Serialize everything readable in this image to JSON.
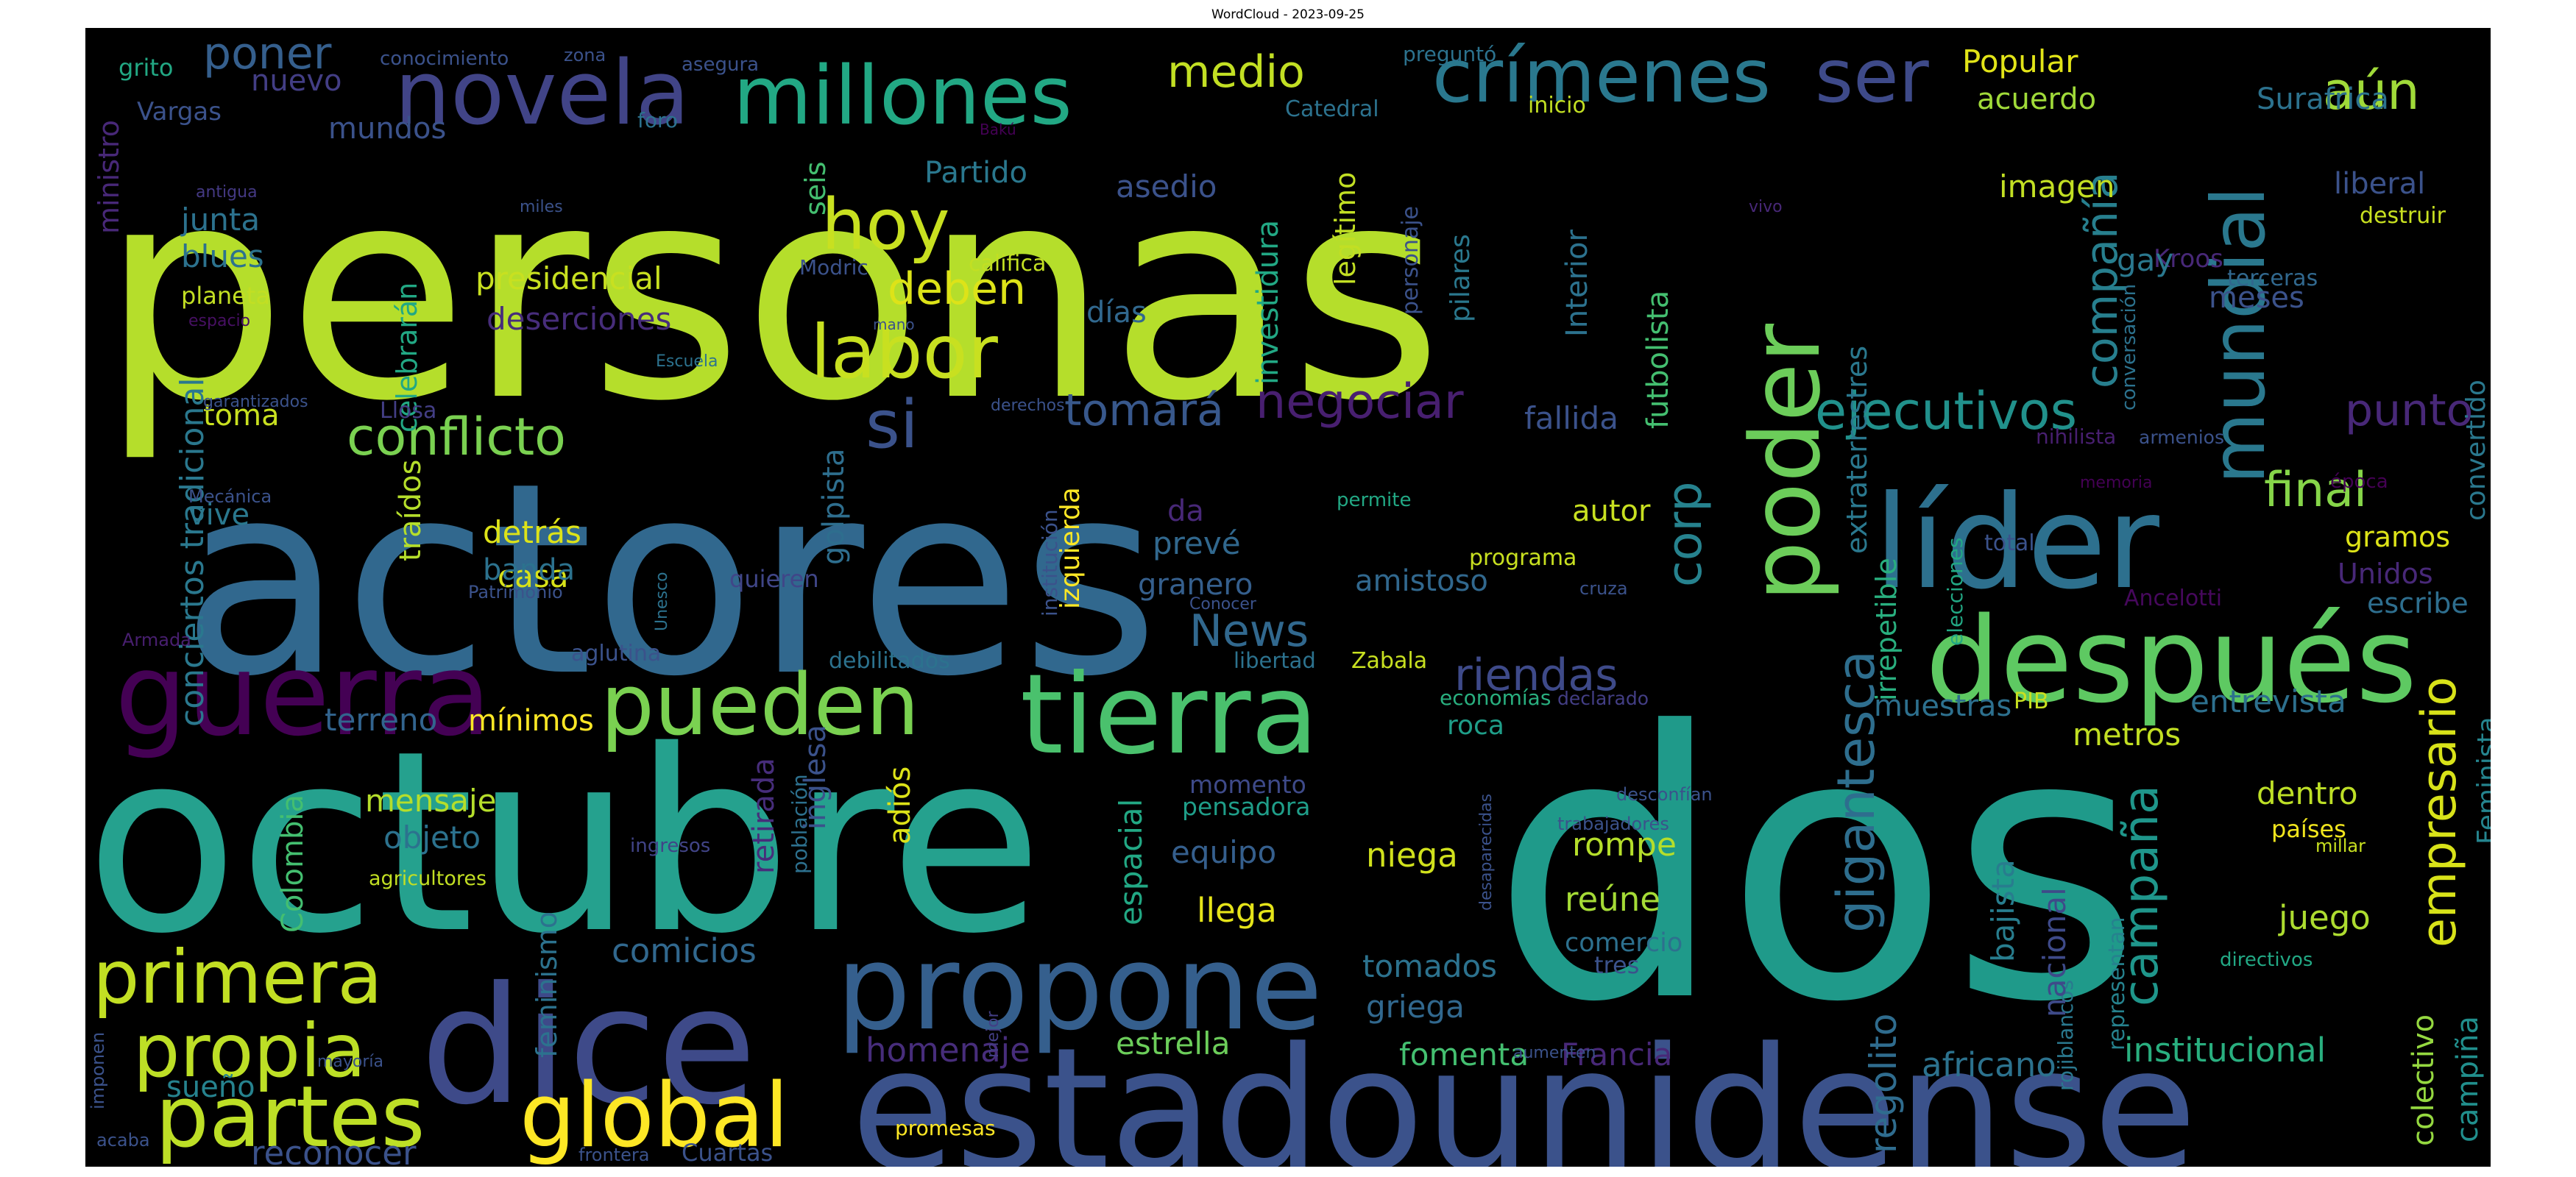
{
  "chart_data": {
    "type": "wordcloud",
    "title": "WordCloud - 2023-09-25",
    "colormap": "viridis",
    "background": "#000000",
    "words": [
      {
        "text": "personas",
        "color": "#b5de2b",
        "weight": 100
      },
      {
        "text": "dos",
        "color": "#1f9a8a",
        "weight": 95
      },
      {
        "text": "actores",
        "color": "#31688e",
        "weight": 92
      },
      {
        "text": "octubre",
        "color": "#25a18e",
        "weight": 90
      },
      {
        "text": "estadounidense",
        "color": "#3b528b",
        "weight": 70
      },
      {
        "text": "dice",
        "color": "#3e4a89",
        "weight": 66
      },
      {
        "text": "líder",
        "color": "#2d708e",
        "weight": 58
      },
      {
        "text": "propone",
        "color": "#355f8d",
        "weight": 52
      },
      {
        "text": "después",
        "color": "#5ec962",
        "weight": 50
      },
      {
        "text": "guerra",
        "color": "#440154",
        "weight": 48
      },
      {
        "text": "tierra",
        "color": "#4ac16d",
        "weight": 46
      },
      {
        "text": "poder",
        "color": "#6ccd5a",
        "weight": 46
      },
      {
        "text": "novela",
        "color": "#414487",
        "weight": 40
      },
      {
        "text": "millones",
        "color": "#22a884",
        "weight": 40
      },
      {
        "text": "pueden",
        "color": "#7ad151",
        "weight": 40
      },
      {
        "text": "crímenes",
        "color": "#2a788e",
        "weight": 38
      },
      {
        "text": "mundial",
        "color": "#2a788e",
        "weight": 38
      },
      {
        "text": "ser",
        "color": "#3e4a89",
        "weight": 38
      },
      {
        "text": "partes",
        "color": "#bddf26",
        "weight": 37
      },
      {
        "text": "global",
        "color": "#fde725",
        "weight": 37
      },
      {
        "text": "primera",
        "color": "#c2df23",
        "weight": 35
      },
      {
        "text": "propia",
        "color": "#bddf26",
        "weight": 35
      },
      {
        "text": "labor",
        "color": "#c8e020",
        "weight": 34
      },
      {
        "text": "hoy",
        "color": "#c8e020",
        "weight": 34
      },
      {
        "text": "si",
        "color": "#3b528b",
        "weight": 32
      },
      {
        "text": "gigantesca",
        "color": "#2e6e8e",
        "weight": 32
      },
      {
        "text": "campaña",
        "color": "#1f968b",
        "weight": 31
      },
      {
        "text": "empresario",
        "color": "#d8e219",
        "weight": 31
      },
      {
        "text": "compañía",
        "color": "#277f8e",
        "weight": 30
      },
      {
        "text": "conflicto",
        "color": "#7ad151",
        "weight": 30
      },
      {
        "text": "corp",
        "color": "#26828e",
        "weight": 30
      },
      {
        "text": "ejecutivos",
        "color": "#21918c",
        "weight": 29
      },
      {
        "text": "aún",
        "color": "#a0da39",
        "weight": 28
      },
      {
        "text": "final",
        "color": "#86d549",
        "weight": 28
      },
      {
        "text": "riendas",
        "color": "#3e4a89",
        "weight": 28
      },
      {
        "text": "poner",
        "color": "#355f8d",
        "weight": 27
      },
      {
        "text": "negociar",
        "color": "#481f70",
        "weight": 27
      },
      {
        "text": "medio",
        "color": "#c2df23",
        "weight": 27
      },
      {
        "text": "tomará",
        "color": "#38588c",
        "weight": 27
      },
      {
        "text": "deben",
        "color": "#dde318",
        "weight": 27
      },
      {
        "text": "punto",
        "color": "#482878",
        "weight": 27
      },
      {
        "text": "News",
        "color": "#31688e",
        "weight": 27
      },
      {
        "text": "regolito",
        "color": "#2f6c8e",
        "weight": 25
      },
      {
        "text": "institucional",
        "color": "#29af7f",
        "weight": 25
      },
      {
        "text": "africano",
        "color": "#2c728e",
        "weight": 25
      },
      {
        "text": "homenaje",
        "color": "#472d7b",
        "weight": 23
      },
      {
        "text": "comicios",
        "color": "#31688e",
        "weight": 23
      },
      {
        "text": "reconocer",
        "color": "#3b528b",
        "weight": 23
      },
      {
        "text": "sueño",
        "color": "#26828e",
        "weight": 22
      },
      {
        "text": "llega",
        "color": "#e5e419",
        "weight": 22
      },
      {
        "text": "estrella",
        "color": "#6ccd5a",
        "weight": 22
      },
      {
        "text": "fomenta",
        "color": "#44bf70",
        "weight": 22
      },
      {
        "text": "Francia",
        "color": "#482878",
        "weight": 22
      },
      {
        "text": "griega",
        "color": "#31688e",
        "weight": 22
      },
      {
        "text": "tomados",
        "color": "#2c728e",
        "weight": 22
      },
      {
        "text": "juego",
        "color": "#addc30",
        "weight": 22
      },
      {
        "text": "colectivo",
        "color": "#95d840",
        "weight": 22
      },
      {
        "text": "campiña",
        "color": "#218f8d",
        "weight": 22
      },
      {
        "text": "rojiblancos",
        "color": "#2a788e",
        "weight": 15
      },
      {
        "text": "nacional",
        "color": "#3e4a89",
        "weight": 22
      },
      {
        "text": "bajista",
        "color": "#287d8e",
        "weight": 22
      },
      {
        "text": "representan",
        "color": "#26828e",
        "weight": 15
      },
      {
        "text": "directivos",
        "color": "#22a884",
        "weight": 14
      },
      {
        "text": "comercio",
        "color": "#2d708e",
        "weight": 15
      },
      {
        "text": "tres",
        "color": "#3b528b",
        "weight": 16
      },
      {
        "text": "reúne",
        "color": "#a5db36",
        "weight": 22
      },
      {
        "text": "rompe",
        "color": "#b5de2b",
        "weight": 21
      },
      {
        "text": "niega",
        "color": "#d0e11c",
        "weight": 21
      },
      {
        "text": "equipo",
        "color": "#355f8d",
        "weight": 21
      },
      {
        "text": "pensadora",
        "color": "#1f9e89",
        "weight": 17
      },
      {
        "text": "momento",
        "color": "#3e4a89",
        "weight": 17
      },
      {
        "text": "población",
        "color": "#2d708e",
        "weight": 15
      },
      {
        "text": "ingresos",
        "color": "#414487",
        "weight": 13
      },
      {
        "text": "agricultores",
        "color": "#c2df23",
        "weight": 14
      },
      {
        "text": "mensaje",
        "color": "#b5de2b",
        "weight": 22
      },
      {
        "text": "objeto",
        "color": "#2c728e",
        "weight": 22
      },
      {
        "text": "Colombia",
        "color": "#44bf70",
        "weight": 21
      },
      {
        "text": "feminismo",
        "color": "#2c728e",
        "weight": 19
      },
      {
        "text": "retirada",
        "color": "#472d7b",
        "weight": 20
      },
      {
        "text": "inglesa",
        "color": "#3b528b",
        "weight": 22
      },
      {
        "text": "adiós",
        "color": "#dde318",
        "weight": 20
      },
      {
        "text": "espacial",
        "color": "#22a884",
        "weight": 22
      },
      {
        "text": "terreno",
        "color": "#32648e",
        "weight": 21
      },
      {
        "text": "mínimos",
        "color": "#fde725",
        "weight": 21
      },
      {
        "text": "conciertos tradicional",
        "color": "#2a788e",
        "weight": 22
      },
      {
        "text": "traídos",
        "color": "#b5de2b",
        "weight": 21
      },
      {
        "text": "casa",
        "color": "#d8e219",
        "weight": 21
      },
      {
        "text": "detrás",
        "color": "#dde318",
        "weight": 21
      },
      {
        "text": "banda",
        "color": "#2c728e",
        "weight": 21
      },
      {
        "text": "toma",
        "color": "#c8e020",
        "weight": 19
      },
      {
        "text": "vive",
        "color": "#2a788e",
        "weight": 19
      },
      {
        "text": "golpista",
        "color": "#2e6e8e",
        "weight": 20
      },
      {
        "text": "izquierda",
        "color": "#fde725",
        "weight": 18
      },
      {
        "text": "institución",
        "color": "#3b528b",
        "weight": 15
      },
      {
        "text": "aglutina",
        "color": "#3b528b",
        "weight": 16
      },
      {
        "text": "debilitados",
        "color": "#2c728e",
        "weight": 16
      },
      {
        "text": "quieren",
        "color": "#404688",
        "weight": 17
      },
      {
        "text": "prevé",
        "color": "#31688e",
        "weight": 21
      },
      {
        "text": "granero",
        "color": "#355f8d",
        "weight": 20
      },
      {
        "text": "amistoso",
        "color": "#31688e",
        "weight": 21
      },
      {
        "text": "autor",
        "color": "#c8e020",
        "weight": 21
      },
      {
        "text": "programa",
        "color": "#c8e020",
        "weight": 16
      },
      {
        "text": "da",
        "color": "#482878",
        "weight": 21
      },
      {
        "text": "libertad",
        "color": "#2c728e",
        "weight": 16
      },
      {
        "text": "Zabala",
        "color": "#c8e020",
        "weight": 16
      },
      {
        "text": "economías",
        "color": "#29af7f",
        "weight": 15
      },
      {
        "text": "roca",
        "color": "#1f9e89",
        "weight": 19
      },
      {
        "text": "declarado",
        "color": "#433e85",
        "weight": 14
      },
      {
        "text": "muestras",
        "color": "#2d708e",
        "weight": 21
      },
      {
        "text": "PIB",
        "color": "#c8e020",
        "weight": 17
      },
      {
        "text": "metros",
        "color": "#c2df23",
        "weight": 21
      },
      {
        "text": "entrevista",
        "color": "#2d708e",
        "weight": 21
      },
      {
        "text": "dentro",
        "color": "#bddf26",
        "weight": 21
      },
      {
        "text": "países",
        "color": "#f1e51d",
        "weight": 16
      },
      {
        "text": "millar",
        "color": "#c8e020",
        "weight": 13
      },
      {
        "text": "Feminista",
        "color": "#25848e",
        "weight": 18
      },
      {
        "text": "irrepetible",
        "color": "#29af7f",
        "weight": 20
      },
      {
        "text": "extraterrestres",
        "color": "#2a788e",
        "weight": 20
      },
      {
        "text": "elecciones",
        "color": "#22a884",
        "weight": 15
      },
      {
        "text": "total",
        "color": "#3b528b",
        "weight": 16
      },
      {
        "text": "memoria",
        "color": "#440154",
        "weight": 12
      },
      {
        "text": "nihilista",
        "color": "#481f70",
        "weight": 15
      },
      {
        "text": "armenios",
        "color": "#3b528b",
        "weight": 13
      },
      {
        "text": "época",
        "color": "#440154",
        "weight": 14
      },
      {
        "text": "gramos",
        "color": "#dde318",
        "weight": 19
      },
      {
        "text": "Unidos",
        "color": "#482878",
        "weight": 19
      },
      {
        "text": "escribe",
        "color": "#2e6e8e",
        "weight": 19
      },
      {
        "text": "Ancelotti",
        "color": "#46085c",
        "weight": 16
      },
      {
        "text": "convertido",
        "color": "#2a788e",
        "weight": 18
      },
      {
        "text": "liberal",
        "color": "#3b528b",
        "weight": 20
      },
      {
        "text": "destruir",
        "color": "#c8e020",
        "weight": 16
      },
      {
        "text": "meses",
        "color": "#3b528b",
        "weight": 20
      },
      {
        "text": "terceras",
        "color": "#31688e",
        "weight": 15
      },
      {
        "text": "Kroos",
        "color": "#482878",
        "weight": 17
      },
      {
        "text": "conversación",
        "color": "#2c728e",
        "weight": 13
      },
      {
        "text": "gay",
        "color": "#2a788e",
        "weight": 21
      },
      {
        "text": "imagen",
        "color": "#c2df23",
        "weight": 21
      },
      {
        "text": "Interior",
        "color": "#2c728e",
        "weight": 20
      },
      {
        "text": "futbolista",
        "color": "#44bf70",
        "weight": 20
      },
      {
        "text": "vivo",
        "color": "#482878",
        "weight": 12
      },
      {
        "text": "Popular",
        "color": "#e2e418",
        "weight": 21
      },
      {
        "text": "acuerdo",
        "color": "#a0da39",
        "weight": 20
      },
      {
        "text": "Surafrica",
        "color": "#2c728e",
        "weight": 21
      },
      {
        "text": "inicio",
        "color": "#c2df23",
        "weight": 15
      },
      {
        "text": "preguntó",
        "color": "#2c728e",
        "weight": 15
      },
      {
        "text": "Catedral",
        "color": "#2c728e",
        "weight": 15
      },
      {
        "text": "foro",
        "color": "#2c728e",
        "weight": 14
      },
      {
        "text": "Bakú",
        "color": "#440154",
        "weight": 11
      },
      {
        "text": "asedio",
        "color": "#3b528b",
        "weight": 21
      },
      {
        "text": "Partido",
        "color": "#2a788e",
        "weight": 20
      },
      {
        "text": "investidura",
        "color": "#22a884",
        "weight": 20
      },
      {
        "text": "legítimo",
        "color": "#c2df23",
        "weight": 19
      },
      {
        "text": "personaje",
        "color": "#3b528b",
        "weight": 17
      },
      {
        "text": "pilares",
        "color": "#2a788e",
        "weight": 19
      },
      {
        "text": "califica",
        "color": "#c2df23",
        "weight": 16
      },
      {
        "text": "días",
        "color": "#31688e",
        "weight": 21
      },
      {
        "text": "fallida",
        "color": "#3b528b",
        "weight": 21
      },
      {
        "text": "celebrarán",
        "color": "#22a884",
        "weight": 19
      },
      {
        "text": "presidencial",
        "color": "#c8e020",
        "weight": 21
      },
      {
        "text": "deserciones",
        "color": "#472d7b",
        "weight": 20
      },
      {
        "text": "junta",
        "color": "#2c728e",
        "weight": 21
      },
      {
        "text": "blues",
        "color": "#2c728e",
        "weight": 21
      },
      {
        "text": "planeta",
        "color": "#c2df23",
        "weight": 17
      },
      {
        "text": "espacio",
        "color": "#471063",
        "weight": 12
      },
      {
        "text": "antigua",
        "color": "#443983",
        "weight": 12
      },
      {
        "text": "miles",
        "color": "#3b528b",
        "weight": 12
      },
      {
        "text": "Modric",
        "color": "#3b528b",
        "weight": 15
      },
      {
        "text": "mano",
        "color": "#3b528b",
        "weight": 11
      },
      {
        "text": "Escuela",
        "color": "#2c728e",
        "weight": 12
      },
      {
        "text": "seis",
        "color": "#44bf70",
        "weight": 18
      },
      {
        "text": "mundos",
        "color": "#3b528b",
        "weight": 20
      },
      {
        "text": "nuevo",
        "color": "#433e85",
        "weight": 20
      },
      {
        "text": "Vargas",
        "color": "#3b528b",
        "weight": 18
      },
      {
        "text": "grito",
        "color": "#22a884",
        "weight": 18
      },
      {
        "text": "conocimiento",
        "color": "#3b528b",
        "weight": 14
      },
      {
        "text": "zona",
        "color": "#3b528b",
        "weight": 13
      },
      {
        "text": "asegura",
        "color": "#3b528b",
        "weight": 14
      },
      {
        "text": "ministro",
        "color": "#482878",
        "weight": 19
      },
      {
        "text": "garantizados",
        "color": "#3b528b",
        "weight": 12
      },
      {
        "text": "Llosa",
        "color": "#433e85",
        "weight": 16
      },
      {
        "text": "derechos",
        "color": "#3b528b",
        "weight": 12
      },
      {
        "text": "Mecánica",
        "color": "#3b528b",
        "weight": 13
      },
      {
        "text": "Patrimonio",
        "color": "#3b528b",
        "weight": 13
      },
      {
        "text": "Unesco",
        "color": "#2c728e",
        "weight": 12
      },
      {
        "text": "Armada",
        "color": "#481f70",
        "weight": 13
      },
      {
        "text": "permite",
        "color": "#22a884",
        "weight": 14
      },
      {
        "text": "cruza",
        "color": "#3b528b",
        "weight": 13
      },
      {
        "text": "Conocer",
        "color": "#3b528b",
        "weight": 12
      },
      {
        "text": "desconfían",
        "color": "#3b528b",
        "weight": 13
      },
      {
        "text": "trabajadores",
        "color": "#3b528b",
        "weight": 13
      },
      {
        "text": "desaparecidas",
        "color": "#3b528b",
        "weight": 12
      },
      {
        "text": "aumenten",
        "color": "#3b528b",
        "weight": 12
      },
      {
        "text": "mejor",
        "color": "#433e85",
        "weight": 12
      },
      {
        "text": "promesas",
        "color": "#fde725",
        "weight": 14
      },
      {
        "text": "frontera",
        "color": "#3b528b",
        "weight": 13
      },
      {
        "text": "Cuartas",
        "color": "#3b528b",
        "weight": 16
      },
      {
        "text": "mayoría",
        "color": "#3b528b",
        "weight": 12
      },
      {
        "text": "imponen",
        "color": "#3b528b",
        "weight": 12
      },
      {
        "text": "acaba",
        "color": "#3b528b",
        "weight": 12
      }
    ]
  }
}
